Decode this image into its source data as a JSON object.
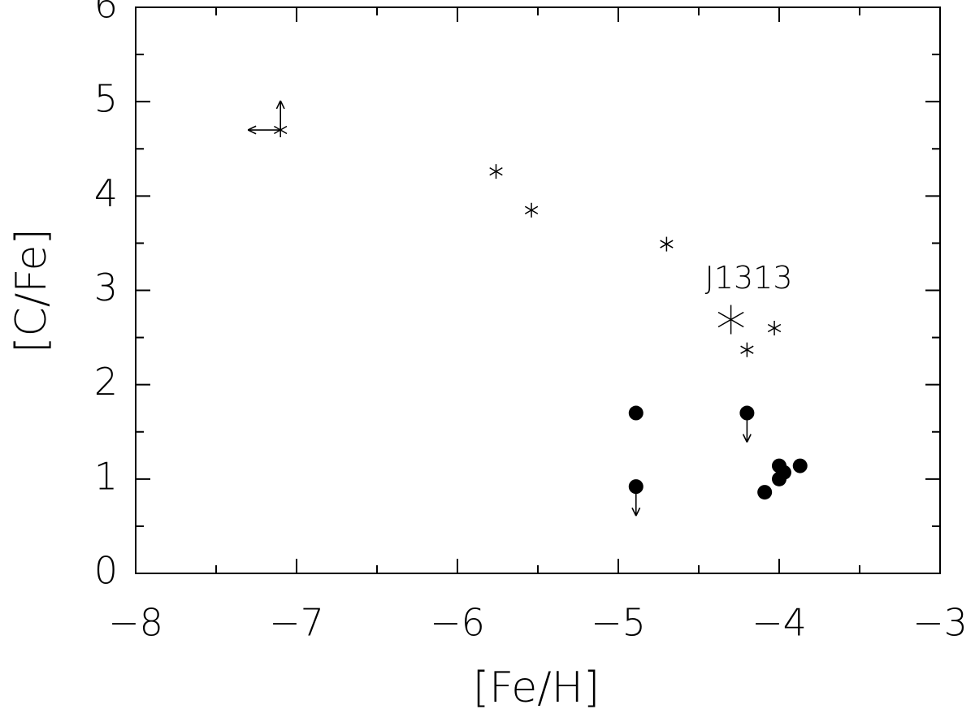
{
  "chart_data": {
    "type": "scatter",
    "xlabel": "[Fe/H]",
    "ylabel": "[C/Fe]",
    "xlim": [
      -8,
      -3
    ],
    "ylim": [
      0,
      6
    ],
    "xticks": [
      {
        "value": -8,
        "label": "−8"
      },
      {
        "value": -7,
        "label": "−7"
      },
      {
        "value": -6,
        "label": "−6"
      },
      {
        "value": -5,
        "label": "−5"
      },
      {
        "value": -4,
        "label": "−4"
      },
      {
        "value": -3,
        "label": "−3"
      }
    ],
    "yticks": [
      0,
      1,
      2,
      3,
      4,
      5,
      6
    ],
    "xminorticks": [
      -7.5,
      -6.5,
      -5.5,
      -4.5,
      -3.5
    ],
    "yminorticks": [
      0.5,
      1.5,
      2.5,
      3.5,
      4.5,
      5.5
    ],
    "mirror_ticks": true,
    "legend": false,
    "series": [
      {
        "marker": "asterisk",
        "size": "small",
        "color": "#000000",
        "x": [
          -7.1,
          -5.76,
          -5.54,
          -4.7,
          -4.03,
          -4.2
        ],
        "values": [
          4.7,
          4.26,
          3.85,
          3.49,
          2.6,
          2.37
        ],
        "x_limit": [
          "upper",
          null,
          null,
          null,
          null,
          null
        ],
        "y_limit": [
          "lower",
          null,
          null,
          null,
          null,
          null
        ]
      },
      {
        "name": "J1313",
        "marker": "asterisk",
        "size": "large",
        "color": "#000000",
        "x": [
          -4.3
        ],
        "values": [
          2.69
        ]
      },
      {
        "marker": "circle",
        "size": "small",
        "color": "#000000",
        "x": [
          -4.89,
          -4.89,
          -4.2,
          -4.0,
          -3.97,
          -4.0,
          -4.09,
          -3.87
        ],
        "values": [
          1.7,
          0.92,
          1.7,
          1.14,
          1.07,
          1.0,
          0.86,
          1.14
        ],
        "y_limit": [
          null,
          "upper",
          "upper",
          null,
          null,
          null,
          null,
          null
        ]
      }
    ]
  }
}
